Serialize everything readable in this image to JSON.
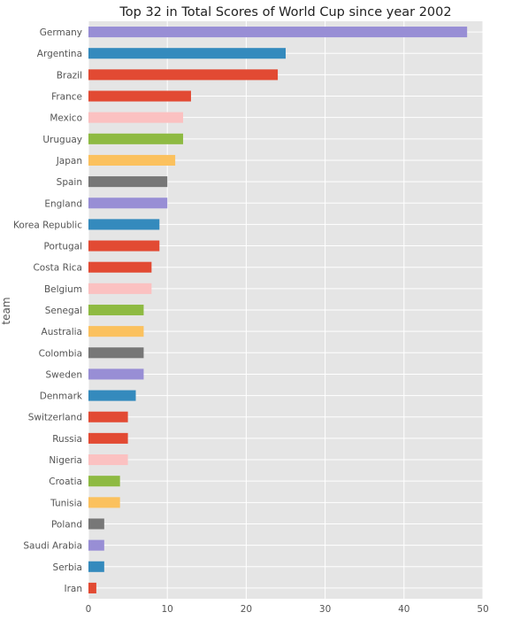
{
  "chart_data": {
    "type": "bar",
    "orientation": "horizontal",
    "title": "Top 32 in Total Scores of World Cup since year 2002",
    "xlabel": "",
    "ylabel": "team",
    "xlim": [
      0,
      50
    ],
    "xticks": [
      "0",
      "10",
      "20",
      "30",
      "40",
      "50"
    ],
    "grid": true,
    "style": "ggplot",
    "categories": [
      "Germany",
      "Argentina",
      "Brazil",
      "France",
      "Mexico",
      "Uruguay",
      "Japan",
      "Spain",
      "England",
      "Korea Republic",
      "Portugal",
      "Costa Rica",
      "Belgium",
      "Senegal",
      "Australia",
      "Colombia",
      "Sweden",
      "Denmark",
      "Switzerland",
      "Russia",
      "Nigeria",
      "Croatia",
      "Tunisia",
      "Poland",
      "Saudi Arabia",
      "Serbia",
      "Iran"
    ],
    "values": [
      48,
      25,
      24,
      13,
      12,
      12,
      11,
      10,
      10,
      9,
      9,
      8,
      8,
      7,
      7,
      7,
      7,
      6,
      5,
      5,
      5,
      4,
      4,
      2,
      2,
      2,
      1
    ],
    "bar_colors": [
      "#988ED5",
      "#348ABD",
      "#E24A33",
      "#E24A33",
      "#FBC1C1",
      "#8EBA42",
      "#FBC15E",
      "#777777",
      "#988ED5",
      "#348ABD",
      "#E24A33",
      "#E24A33",
      "#FBC1C1",
      "#8EBA42",
      "#FBC15E",
      "#777777",
      "#988ED5",
      "#348ABD",
      "#E24A33",
      "#E24A33",
      "#FBC1C1",
      "#8EBA42",
      "#FBC15E",
      "#777777",
      "#988ED5",
      "#348ABD",
      "#E24A33"
    ],
    "colors": {
      "plot_background": "#E5E5E5",
      "grid": "#FFFFFF",
      "tick_text": "#555555",
      "title_text": "#222222"
    }
  }
}
